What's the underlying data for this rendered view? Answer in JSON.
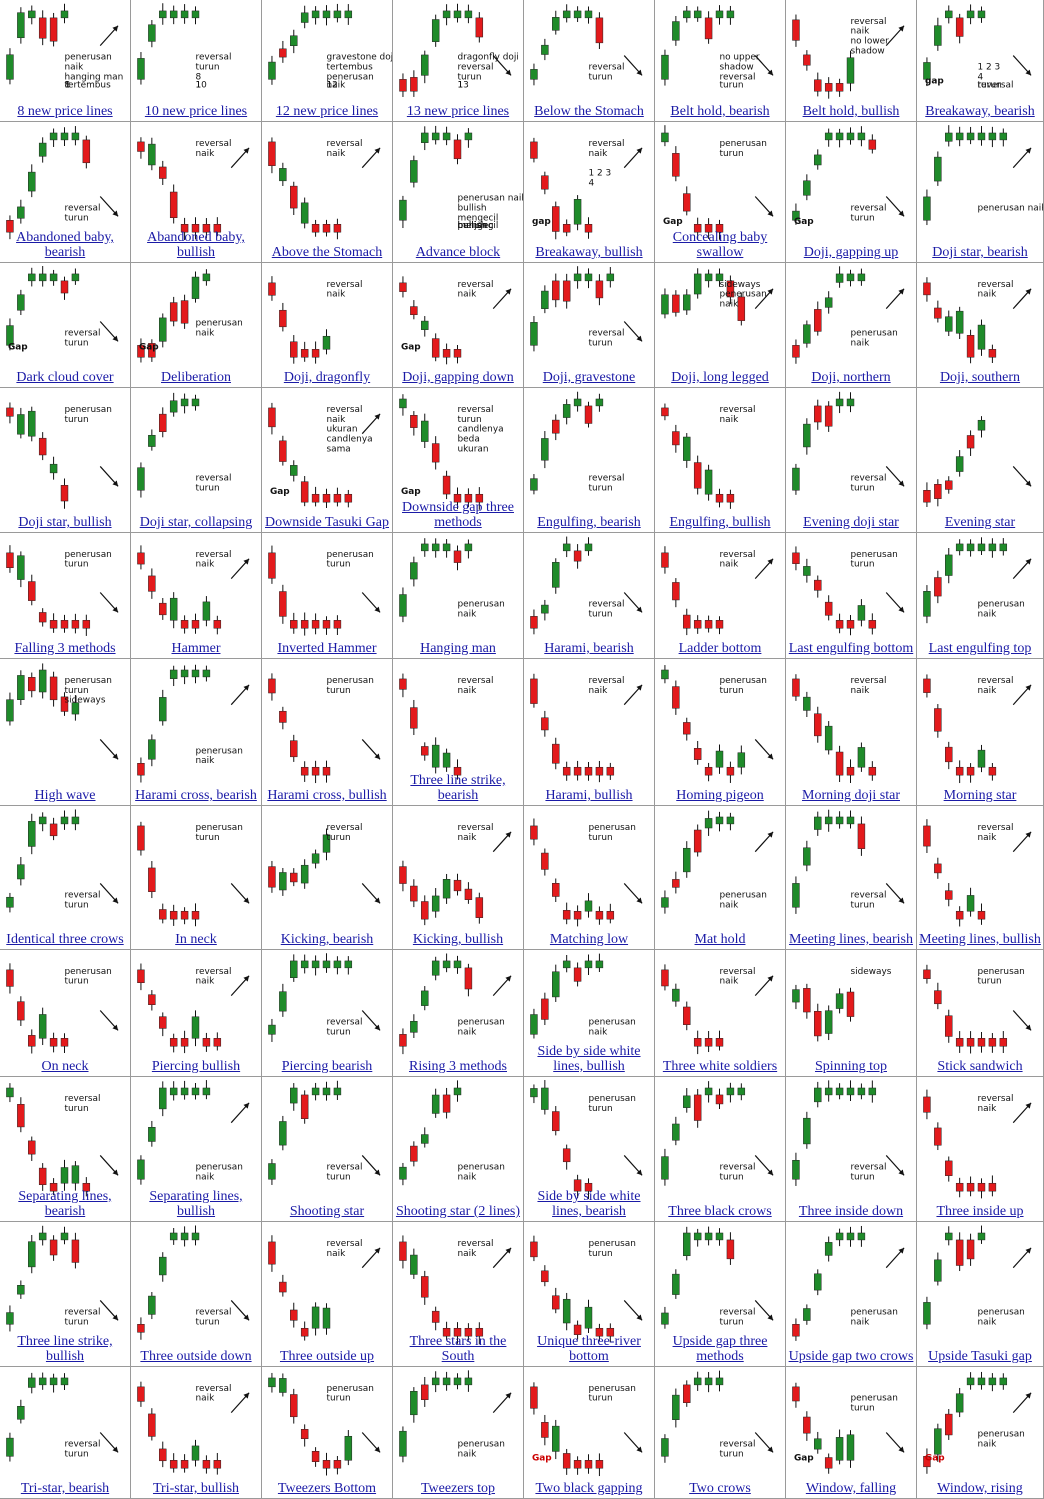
{
  "colors": {
    "bull": "#1f8b2a",
    "bear": "#e31a1c",
    "title": "#1a1aa6",
    "marker": "#c020c0"
  },
  "patterns": [
    {
      "title": "8 new price lines",
      "notes": [
        "penerusan",
        "naik",
        "hanging man",
        "tertembus",
        "8",
        "1"
      ],
      "trend": "up",
      "arrow": "up"
    },
    {
      "title": "10 new price lines",
      "notes": [
        "reversal",
        "turun",
        "8",
        "1",
        "10"
      ],
      "trend": "up",
      "arrow": "none"
    },
    {
      "title": "12 new price lines",
      "notes": [
        "gravestone doji",
        "tertembus",
        "penerusan",
        "naik",
        "1",
        "12"
      ],
      "trend": "up",
      "arrow": "none"
    },
    {
      "title": "13 new price lines",
      "notes": [
        "dragonfly doji",
        "reversal",
        "turun",
        "1",
        "13"
      ],
      "trend": "up",
      "arrow": "down"
    },
    {
      "title": "Below the Stomach",
      "notes": [
        "reversal",
        "turun"
      ],
      "trend": "up",
      "arrow": "down"
    },
    {
      "title": "Belt hold, bearish",
      "notes": [
        "no upper",
        "shadow",
        "reversal",
        "turun"
      ],
      "trend": "up",
      "arrow": "down"
    },
    {
      "title": "Belt hold, bullish",
      "notes": [
        "reversal",
        "naik",
        "no lower",
        "shadow"
      ],
      "trend": "down",
      "arrow": "up"
    },
    {
      "title": "Breakaway, bearish",
      "notes": [
        "gap",
        "1 2 3",
        "4",
        "reversal",
        "turun"
      ],
      "trend": "up",
      "arrow": "down"
    },
    {
      "title": "Abandoned baby, bearish",
      "notes": [
        "reversal",
        "turun"
      ],
      "trend": "up",
      "arrow": "down"
    },
    {
      "title": "Abandoned baby, bullish",
      "notes": [
        "reversal",
        "naik"
      ],
      "trend": "down",
      "arrow": "up"
    },
    {
      "title": "Above the Stomach",
      "notes": [
        "reversal",
        "naik"
      ],
      "trend": "down",
      "arrow": "up"
    },
    {
      "title": "Advance block",
      "notes": [
        "penerusan naik",
        "bullish",
        "mengecil",
        "bullish",
        "mengecil",
        "bullish",
        "panjang"
      ],
      "trend": "up",
      "arrow": "none"
    },
    {
      "title": "Breakaway, bullish",
      "notes": [
        "reversal",
        "naik",
        "gap",
        "1 2 3",
        "4"
      ],
      "trend": "down",
      "arrow": "up"
    },
    {
      "title": "Concealing baby swallow",
      "notes": [
        "penerusan",
        "turun",
        "Gap"
      ],
      "trend": "down",
      "arrow": "down"
    },
    {
      "title": "Doji, gapping up",
      "notes": [
        "Gap",
        "reversal",
        "turun"
      ],
      "trend": "up",
      "arrow": "down"
    },
    {
      "title": "Doji star, bearish",
      "notes": [
        "penerusan  naik"
      ],
      "trend": "up",
      "arrow": "up"
    },
    {
      "title": "Dark cloud cover",
      "notes": [
        "Gap",
        "reversal",
        "turun"
      ],
      "trend": "up",
      "arrow": "down"
    },
    {
      "title": "Deliberation",
      "notes": [
        "penerusan",
        "naik",
        "Gap"
      ],
      "trend": "up",
      "arrow": "none"
    },
    {
      "title": "Doji, dragonfly",
      "notes": [
        "reversal",
        "naik"
      ],
      "trend": "down",
      "arrow": "none"
    },
    {
      "title": "Doji, gapping down",
      "notes": [
        "reversal",
        "naik",
        "Gap"
      ],
      "trend": "down",
      "arrow": "up"
    },
    {
      "title": "Doji, gravestone",
      "notes": [
        "reversal",
        "turun"
      ],
      "trend": "up",
      "arrow": "down"
    },
    {
      "title": "Doji, long legged",
      "notes": [
        "sideways",
        "penerusan",
        "naik"
      ],
      "trend": "side",
      "arrow": "up"
    },
    {
      "title": "Doji, northern",
      "notes": [
        "penerusan",
        "naik"
      ],
      "trend": "up",
      "arrow": "up"
    },
    {
      "title": "Doji, southern",
      "notes": [
        "reversal",
        "naik"
      ],
      "trend": "down",
      "arrow": "up"
    },
    {
      "title": "Doji star, bullish",
      "notes": [
        "penerusan",
        "turun"
      ],
      "trend": "down",
      "arrow": "down"
    },
    {
      "title": "Doji star, collapsing",
      "notes": [
        "reversal",
        "turun"
      ],
      "trend": "up",
      "arrow": "none"
    },
    {
      "title": "Downside Tasuki Gap",
      "notes": [
        "reversal",
        "naik",
        "ukuran",
        "candlenya",
        "sama",
        "Gap"
      ],
      "trend": "down",
      "arrow": "up"
    },
    {
      "title": "Downside gap three methods",
      "notes": [
        "reversal",
        "turun",
        "candlenya",
        "beda",
        "ukuran",
        "Gap"
      ],
      "trend": "down",
      "arrow": "none"
    },
    {
      "title": "Engulfing, bearish",
      "notes": [
        "reversal",
        "turun"
      ],
      "trend": "up",
      "arrow": "none"
    },
    {
      "title": "Engulfing, bullish",
      "notes": [
        "reversal",
        "naik"
      ],
      "trend": "down",
      "arrow": "none"
    },
    {
      "title": "Evening doji star",
      "notes": [
        "reversal",
        "turun"
      ],
      "trend": "up",
      "arrow": "down"
    },
    {
      "title": "Evening star",
      "notes": [],
      "trend": "up",
      "arrow": "down"
    },
    {
      "title": "Falling 3 methods",
      "notes": [
        "penerusan",
        "turun"
      ],
      "trend": "down",
      "arrow": "down"
    },
    {
      "title": "Hammer",
      "notes": [
        "reversal",
        "naik"
      ],
      "trend": "down",
      "arrow": "up"
    },
    {
      "title": "Inverted Hammer",
      "notes": [
        "penerusan",
        "turun"
      ],
      "trend": "down",
      "arrow": "down"
    },
    {
      "title": "Hanging man",
      "notes": [
        "penerusan",
        "naik"
      ],
      "trend": "up",
      "arrow": "none"
    },
    {
      "title": "Harami, bearish",
      "notes": [
        "reversal",
        "turun"
      ],
      "trend": "up",
      "arrow": "down"
    },
    {
      "title": "Ladder bottom",
      "notes": [
        "reversal",
        "naik"
      ],
      "trend": "down",
      "arrow": "up"
    },
    {
      "title": "Last engulfing bottom",
      "notes": [
        "penerusan",
        "turun"
      ],
      "trend": "down",
      "arrow": "down"
    },
    {
      "title": "Last engulfing top",
      "notes": [
        "penerusan",
        "naik"
      ],
      "trend": "up",
      "arrow": "up"
    },
    {
      "title": "High wave",
      "notes": [
        "penerusan",
        "turun",
        "sideways"
      ],
      "trend": "side",
      "arrow": "down"
    },
    {
      "title": "Harami cross, bearish",
      "notes": [
        "penerusan",
        "naik"
      ],
      "trend": "up",
      "arrow": "up"
    },
    {
      "title": "Harami cross, bullish",
      "notes": [
        "penerusan",
        "turun"
      ],
      "trend": "down",
      "arrow": "down"
    },
    {
      "title": "Three line strike, bearish",
      "notes": [
        "reversal",
        "naik"
      ],
      "trend": "down",
      "arrow": "none"
    },
    {
      "title": "Harami, bullish",
      "notes": [
        "reversal",
        "naik"
      ],
      "trend": "down",
      "arrow": "up"
    },
    {
      "title": "Homing pigeon",
      "notes": [
        "penerusan",
        "turun"
      ],
      "trend": "down",
      "arrow": "down"
    },
    {
      "title": "Morning doji star",
      "notes": [
        "reversal",
        "naik"
      ],
      "trend": "down",
      "arrow": "none"
    },
    {
      "title": "Morning star",
      "notes": [
        "reversal",
        "naik"
      ],
      "trend": "down",
      "arrow": "up"
    },
    {
      "title": "Identical three crows",
      "notes": [
        "reversal",
        "turun"
      ],
      "trend": "up",
      "arrow": "down"
    },
    {
      "title": "In neck",
      "notes": [
        "penerusan",
        "turun"
      ],
      "trend": "down",
      "arrow": "down"
    },
    {
      "title": "Kicking, bearish",
      "notes": [
        "reversal",
        "turun"
      ],
      "trend": "side",
      "arrow": "down"
    },
    {
      "title": "Kicking, bullish",
      "notes": [
        "reversal",
        "naik"
      ],
      "trend": "side",
      "arrow": "up"
    },
    {
      "title": "Matching low",
      "notes": [
        "penerusan",
        "turun"
      ],
      "trend": "down",
      "arrow": "down"
    },
    {
      "title": "Mat hold",
      "notes": [
        "penerusan",
        "naik"
      ],
      "trend": "up",
      "arrow": "up"
    },
    {
      "title": "Meeting lines, bearish",
      "notes": [
        "reversal",
        "turun"
      ],
      "trend": "up",
      "arrow": "down"
    },
    {
      "title": "Meeting lines, bullish",
      "notes": [
        "reversal",
        "naik"
      ],
      "trend": "down",
      "arrow": "up"
    },
    {
      "title": "On neck",
      "notes": [
        "penerusan",
        "turun"
      ],
      "trend": "down",
      "arrow": "down"
    },
    {
      "title": "Piercing bullish",
      "notes": [
        "reversal",
        "naik"
      ],
      "trend": "down",
      "arrow": "up"
    },
    {
      "title": "Piercing bearish",
      "notes": [
        "reversal",
        "turun"
      ],
      "trend": "up",
      "arrow": "down"
    },
    {
      "title": "Rising 3 methods",
      "notes": [
        "penerusan",
        "naik"
      ],
      "trend": "up",
      "arrow": "up"
    },
    {
      "title": "Side by side white lines, bullish",
      "notes": [
        "penerusan",
        "naik"
      ],
      "trend": "up",
      "arrow": "none"
    },
    {
      "title": "Three white soldiers",
      "notes": [
        "reversal",
        "naik"
      ],
      "trend": "down",
      "arrow": "up"
    },
    {
      "title": "Spinning top",
      "notes": [
        "sideways"
      ],
      "trend": "side",
      "arrow": "none"
    },
    {
      "title": "Stick sandwich",
      "notes": [
        "penerusan",
        "turun"
      ],
      "trend": "down",
      "arrow": "down"
    },
    {
      "title": "Separating lines, bearish",
      "notes": [
        "reversal",
        "turun"
      ],
      "trend": "down",
      "arrow": "down"
    },
    {
      "title": "Separating lines, bullish",
      "notes": [
        "penerusan",
        "naik"
      ],
      "trend": "up",
      "arrow": "up"
    },
    {
      "title": "Shooting star",
      "notes": [
        "reversal",
        "turun"
      ],
      "trend": "up",
      "arrow": "down"
    },
    {
      "title": "Shooting star (2 lines)",
      "notes": [
        "penerusan",
        "naik"
      ],
      "trend": "up",
      "arrow": "none"
    },
    {
      "title": "Side by side white lines, bearish",
      "notes": [
        "penerusan",
        "turun"
      ],
      "trend": "down",
      "arrow": "down"
    },
    {
      "title": "Three black crows",
      "notes": [
        "reversal",
        "turun"
      ],
      "trend": "up",
      "arrow": "down"
    },
    {
      "title": "Three inside down",
      "notes": [
        "reversal",
        "turun"
      ],
      "trend": "up",
      "arrow": "down"
    },
    {
      "title": "Three inside up",
      "notes": [
        "reversal",
        "naik"
      ],
      "trend": "down",
      "arrow": "up"
    },
    {
      "title": "Three line strike, bullish",
      "notes": [
        "reversal",
        "turun"
      ],
      "trend": "up",
      "arrow": "down"
    },
    {
      "title": "Three outside down",
      "notes": [
        "reversal",
        "turun"
      ],
      "trend": "up",
      "arrow": "down"
    },
    {
      "title": "Three outside up",
      "notes": [
        "reversal",
        "naik"
      ],
      "trend": "down",
      "arrow": "up"
    },
    {
      "title": "Three stars in the South",
      "notes": [
        "reversal",
        "naik"
      ],
      "trend": "down",
      "arrow": "up"
    },
    {
      "title": "Unique three-river bottom",
      "notes": [
        "penerusan",
        "turun"
      ],
      "trend": "down",
      "arrow": "down"
    },
    {
      "title": "Upside gap three methods",
      "notes": [
        "reversal",
        "turun"
      ],
      "trend": "up",
      "arrow": "down"
    },
    {
      "title": "Upside gap two crows",
      "notes": [
        "penerusan",
        "naik"
      ],
      "trend": "up",
      "arrow": "up"
    },
    {
      "title": "Upside Tasuki gap",
      "notes": [
        "penerusan",
        "naik"
      ],
      "trend": "up",
      "arrow": "up"
    },
    {
      "title": "Tri-star, bearish",
      "notes": [
        "reversal",
        "turun"
      ],
      "trend": "up",
      "arrow": "down"
    },
    {
      "title": "Tri-star, bullish",
      "notes": [
        "reversal",
        "naik"
      ],
      "trend": "down",
      "arrow": "up"
    },
    {
      "title": "Tweezers Bottom",
      "notes": [
        "penerusan",
        "turun"
      ],
      "trend": "down",
      "arrow": "down"
    },
    {
      "title": "Tweezers top",
      "notes": [
        "penerusan",
        "naik"
      ],
      "trend": "up",
      "arrow": "up"
    },
    {
      "title": "Two black gapping",
      "notes": [
        "penerusan",
        "turun",
        "Gap"
      ],
      "trend": "down",
      "arrow": "down"
    },
    {
      "title": "Two crows",
      "notes": [
        "reversal",
        "turun"
      ],
      "trend": "up",
      "arrow": "down"
    },
    {
      "title": "Window, falling",
      "notes": [
        "Gap",
        "penerusan",
        "turun"
      ],
      "trend": "down",
      "arrow": "down"
    },
    {
      "title": "Window, rising",
      "notes": [
        "penerusan",
        "naik",
        "Gap"
      ],
      "trend": "up",
      "arrow": "up"
    }
  ]
}
